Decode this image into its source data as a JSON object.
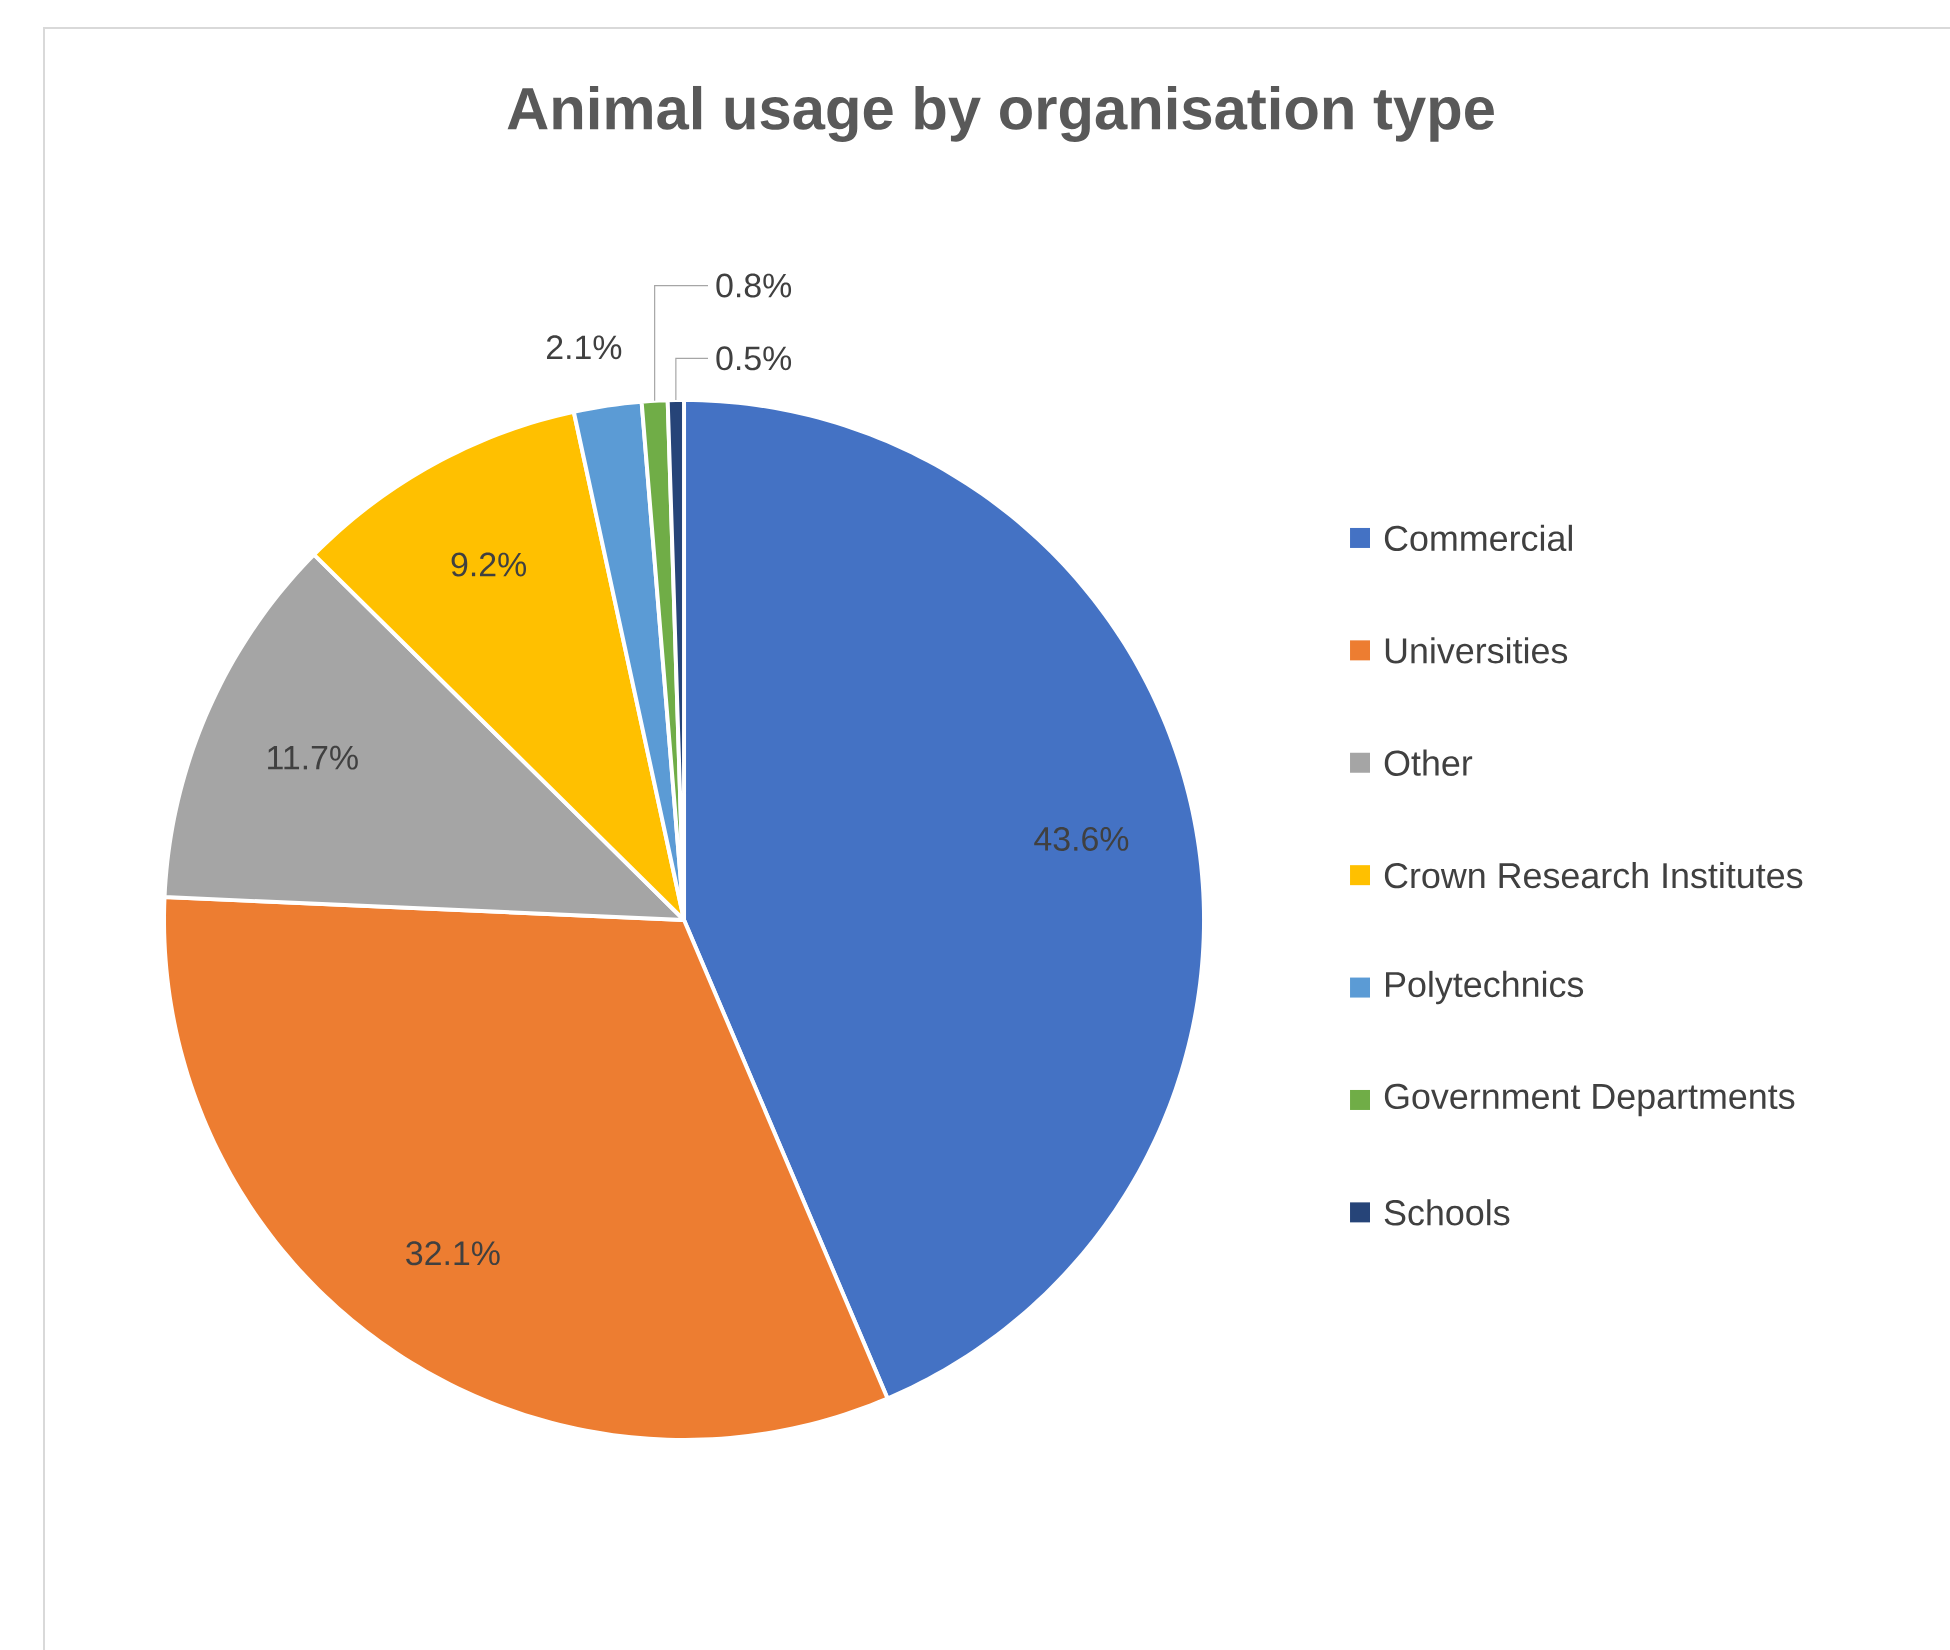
{
  "chart_data": {
    "type": "pie",
    "title": "Animal usage by organisation type",
    "categories": [
      "Commercial",
      "Universities",
      "Other",
      "Crown Research Institutes",
      "Polytechnics",
      "Government Departments",
      "Schools"
    ],
    "values": [
      43.6,
      32.1,
      11.7,
      9.2,
      2.1,
      0.8,
      0.5
    ],
    "value_labels": [
      "43.6%",
      "32.1%",
      "11.7%",
      "9.2%",
      "2.1%",
      "0.8%",
      "0.5%"
    ],
    "colors": [
      "#4472c4",
      "#ed7d31",
      "#a5a5a5",
      "#ffc000",
      "#5b9bd5",
      "#70ad47",
      "#264478"
    ],
    "legend": "right"
  }
}
